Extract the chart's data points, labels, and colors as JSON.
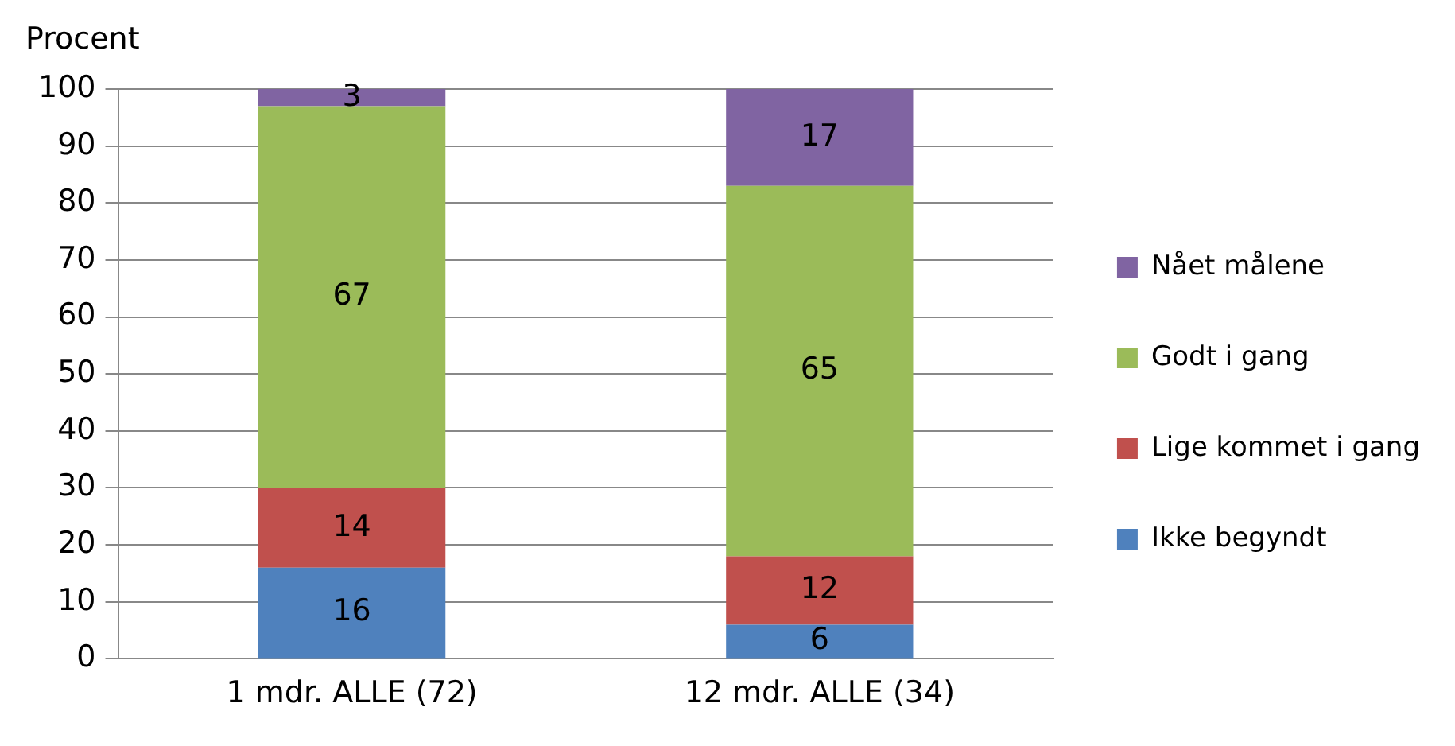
{
  "chart_data": {
    "type": "bar",
    "stacked": true,
    "ylabel": "Procent",
    "categories": [
      "1 mdr. ALLE (72)",
      "12 mdr. ALLE (34)"
    ],
    "series": [
      {
        "name": "Ikke begyndt",
        "color": "#4f81bd",
        "values": [
          16,
          6
        ]
      },
      {
        "name": "Lige kommet i gang",
        "color": "#c0504d",
        "values": [
          14,
          12
        ]
      },
      {
        "name": "Godt i gang",
        "color": "#9bbb59",
        "values": [
          67,
          65
        ]
      },
      {
        "name": "Nået målene",
        "color": "#8064a2",
        "values": [
          3,
          17
        ]
      }
    ],
    "ylim": [
      0,
      100
    ],
    "yticks": [
      0,
      10,
      20,
      30,
      40,
      50,
      60,
      70,
      80,
      90,
      100
    ],
    "grid": "y",
    "legend": "right",
    "data_labels": true
  }
}
